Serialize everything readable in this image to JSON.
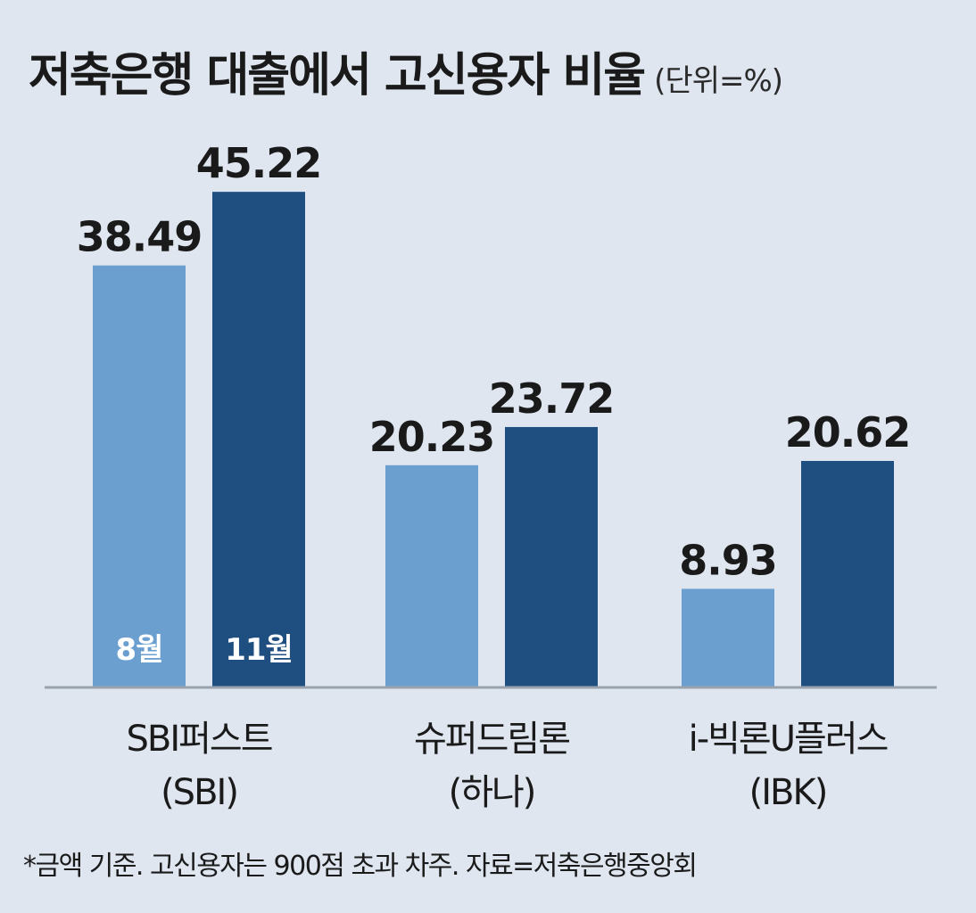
{
  "title": "저축은행 대출에서 고신용자 비율",
  "unit": "(단위=%)",
  "footnote": "*금액 기준. 고신용자는 900점 초과 차주. 자료=저축은행중앙회",
  "colors": {
    "aug": "#6b9fd0",
    "nov": "#1f4f80",
    "baseline": "#9aa3ad"
  },
  "chart_data": {
    "type": "bar",
    "categories": [
      {
        "line1": "SBI퍼스트",
        "line2": "(SBI)"
      },
      {
        "line1": "슈퍼드림론",
        "line2": "(하나)"
      },
      {
        "line1": "i-빅론U플러스",
        "line2": "(IBK)"
      }
    ],
    "series": [
      {
        "name": "8월",
        "values": [
          38.49,
          20.23,
          8.93
        ]
      },
      {
        "name": "11월",
        "values": [
          45.22,
          23.72,
          20.62
        ]
      }
    ],
    "value_labels": [
      [
        "38.49",
        "20.23",
        "8.93"
      ],
      [
        "45.22",
        "23.72",
        "20.62"
      ]
    ],
    "legend": "inside first group bars, at bottom",
    "grid": false,
    "ylim": [
      0,
      50
    ]
  }
}
